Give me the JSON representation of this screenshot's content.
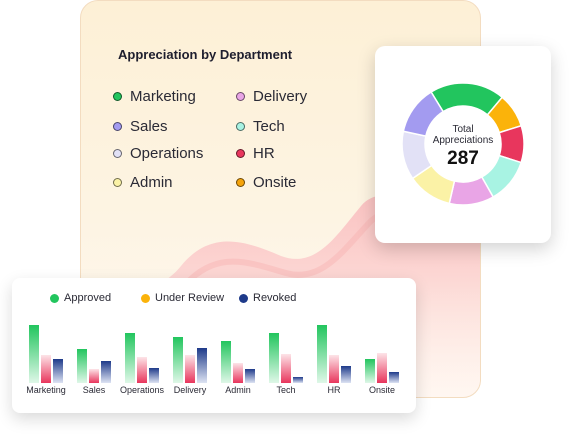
{
  "main_card": {
    "title": "Appreciation by Department",
    "legend": [
      {
        "label": "Marketing",
        "color": "#22c55e"
      },
      {
        "label": "Delivery",
        "color": "#e9a5e6"
      },
      {
        "label": "Sales",
        "color": "#a39bf0"
      },
      {
        "label": "Tech",
        "color": "#a8f3e3"
      },
      {
        "label": "Operations",
        "color": "#e2e1f6"
      },
      {
        "label": "HR",
        "color": "#e8365d"
      },
      {
        "label": "Admin",
        "color": "#fbf2a6"
      },
      {
        "label": "Onsite",
        "color": "#f5a30a"
      }
    ]
  },
  "donut": {
    "center_label_line1": "Total",
    "center_label_line2": "Appreciations",
    "center_value": "287",
    "segments": [
      {
        "name": "Marketing",
        "value": 57,
        "color": "#22c55e"
      },
      {
        "name": "Onsite",
        "value": 26,
        "color": "#fbb30a"
      },
      {
        "name": "HR",
        "value": 28,
        "color": "#e8365d"
      },
      {
        "name": "Tech",
        "value": 34,
        "color": "#a8f3e3"
      },
      {
        "name": "Delivery",
        "value": 34,
        "color": "#e9a5e6"
      },
      {
        "name": "Admin",
        "value": 34,
        "color": "#fbf2a6"
      },
      {
        "name": "Operations",
        "value": 37,
        "color": "#e2e1f6"
      },
      {
        "name": "Sales",
        "value": 37,
        "color": "#a39bf0"
      }
    ]
  },
  "bar_card": {
    "legend": [
      {
        "label": "Approved",
        "color": "#22c55e"
      },
      {
        "label": "Under Review",
        "color": "#fbb30a"
      },
      {
        "label": "Revoked",
        "color": "#1e3a8a"
      }
    ]
  },
  "chart_data": {
    "type": "bar",
    "categories": [
      "Marketing",
      "Sales",
      "Operations",
      "Delivery",
      "Admin",
      "Tech",
      "HR",
      "Onsite"
    ],
    "series": [
      {
        "name": "Approved",
        "values": [
          58,
          34,
          50,
          46,
          42,
          50,
          58,
          24
        ],
        "color": "#22c55e"
      },
      {
        "name": "Under Review",
        "values": [
          28,
          14,
          26,
          28,
          20,
          29,
          28,
          30
        ],
        "color": "#fbb30a"
      },
      {
        "name": "Revoked",
        "values": [
          24,
          22,
          15,
          35,
          14,
          6,
          17,
          11
        ],
        "color": "#1e3a8a"
      }
    ],
    "ylim": [
      0,
      60
    ]
  }
}
